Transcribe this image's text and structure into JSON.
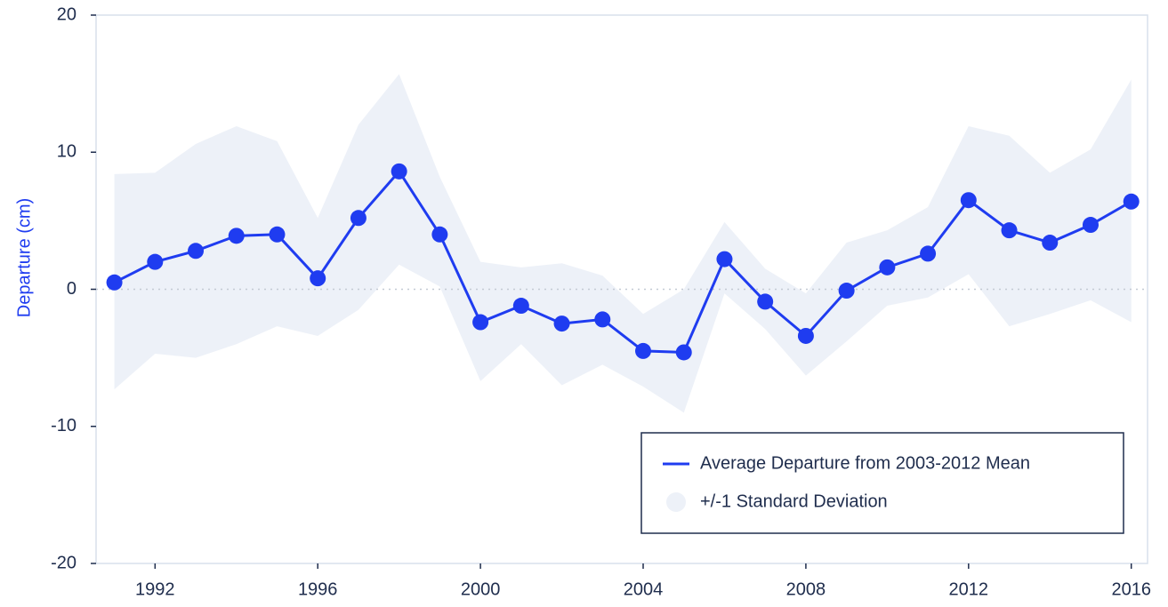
{
  "chart_data": {
    "type": "line",
    "ylabel": "Departure (cm)",
    "x": [
      1991,
      1992,
      1993,
      1994,
      1995,
      1996,
      1997,
      1998,
      1999,
      2000,
      2001,
      2002,
      2003,
      2004,
      2005,
      2006,
      2007,
      2008,
      2009,
      2010,
      2011,
      2012,
      2013,
      2014,
      2015,
      2016
    ],
    "series": [
      {
        "name": "Average Departure from 2003-2012 Mean",
        "color": "#1f3cf0",
        "values": [
          0.5,
          2.0,
          2.8,
          3.9,
          4.0,
          0.8,
          5.2,
          8.6,
          4.0,
          -2.4,
          -1.2,
          -2.5,
          -2.2,
          -4.5,
          -4.6,
          2.2,
          -0.9,
          -3.4,
          -0.1,
          1.6,
          2.6,
          6.5,
          4.3,
          3.4,
          4.7,
          6.4
        ]
      }
    ],
    "band": {
      "name": "+/-1 Standard Deviation",
      "color": "#edf1f8",
      "upper": [
        8.4,
        8.5,
        10.6,
        11.9,
        10.8,
        5.2,
        12.0,
        15.7,
        8.2,
        2.0,
        1.6,
        1.9,
        1.0,
        -1.8,
        0.0,
        4.9,
        1.5,
        -0.3,
        3.4,
        4.3,
        6.0,
        11.9,
        11.2,
        8.5,
        10.2,
        15.3
      ],
      "lower": [
        -7.3,
        -4.7,
        -5.0,
        -4.0,
        -2.7,
        -3.4,
        -1.5,
        1.8,
        0.2,
        -6.7,
        -4.0,
        -7.0,
        -5.5,
        -7.1,
        -9.0,
        -0.3,
        -2.9,
        -6.3,
        -3.8,
        -1.2,
        -0.6,
        1.1,
        -2.7,
        -1.8,
        -0.8,
        -2.4
      ]
    },
    "xlim": [
      1990.55,
      2016.4
    ],
    "xticks": [
      1992,
      1996,
      2000,
      2004,
      2008,
      2012,
      2016
    ],
    "ylim": [
      -20,
      20
    ],
    "yticks": [
      -20,
      -10,
      0,
      10,
      20
    ],
    "legend": "lower right"
  }
}
